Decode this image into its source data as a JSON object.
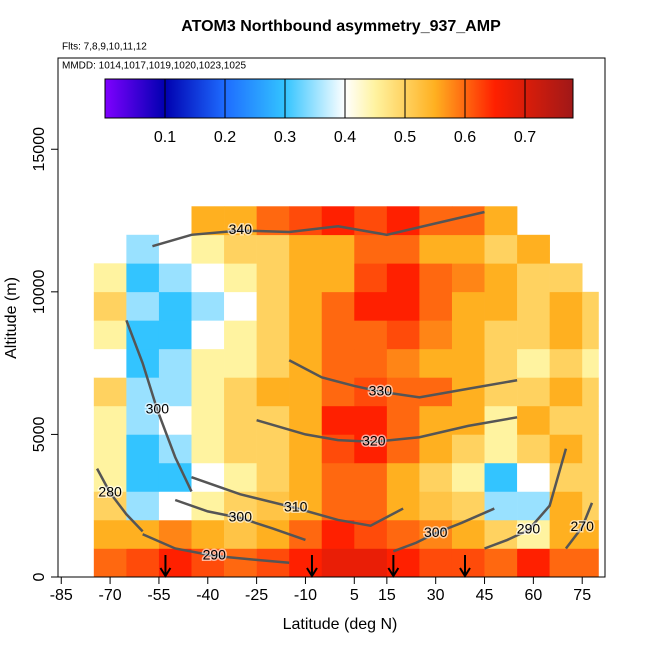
{
  "chart_data": {
    "type": "heatmap",
    "title": "ATOM3 Northbound asymmetry_937_AMP",
    "subtitle": "Flts: 7,8,9,10,11,12",
    "note": "MMDD: 1014,1017,1019,1020,1023,1025",
    "x_label": "Latitude (deg N)",
    "y_label": "Altitude (m)",
    "xlim": [
      -86,
      82
    ],
    "ylim": [
      0,
      18200
    ],
    "xticks": [
      -85,
      -70,
      -55,
      -40,
      -25,
      -10,
      5,
      15,
      30,
      45,
      60,
      75
    ],
    "yticks": [
      0,
      5000,
      10000,
      15000
    ],
    "lat_edges": [
      -75,
      -65,
      -55,
      -45,
      -35,
      -25,
      -15,
      -5,
      5,
      15,
      25,
      35,
      45,
      55,
      65,
      75,
      80
    ],
    "alt_edges": [
      0,
      1000,
      2000,
      3000,
      4000,
      5000,
      6000,
      7000,
      8000,
      9000,
      10000,
      11000,
      12000,
      13000
    ],
    "z": [
      [
        0.6,
        0.62,
        0.65,
        0.62,
        0.6,
        0.62,
        0.65,
        0.68,
        0.68,
        0.65,
        0.62,
        0.62,
        0.6,
        0.65,
        0.6,
        0.6
      ],
      [
        0.55,
        0.55,
        0.58,
        0.55,
        0.52,
        0.55,
        0.6,
        0.65,
        0.62,
        0.6,
        0.58,
        0.55,
        0.5,
        0.45,
        0.55,
        0.55
      ],
      [
        0.5,
        0.35,
        0.4,
        0.45,
        0.5,
        0.52,
        0.55,
        0.6,
        0.6,
        0.55,
        0.52,
        0.5,
        0.35,
        0.35,
        0.55,
        0.5
      ],
      [
        0.45,
        0.3,
        0.3,
        0.4,
        0.45,
        0.5,
        0.55,
        0.6,
        0.6,
        0.55,
        0.5,
        0.45,
        0.3,
        0.4,
        0.5,
        0.5
      ],
      [
        0.45,
        0.3,
        0.35,
        0.45,
        0.5,
        0.5,
        0.55,
        0.62,
        0.65,
        0.6,
        0.55,
        0.5,
        0.45,
        0.5,
        0.55,
        0.5
      ],
      [
        0.45,
        0.35,
        0.4,
        0.45,
        0.5,
        0.5,
        0.55,
        0.65,
        0.65,
        0.6,
        0.55,
        0.55,
        0.45,
        0.55,
        0.5,
        0.5
      ],
      [
        0.5,
        0.35,
        0.35,
        0.45,
        0.5,
        0.55,
        0.55,
        0.6,
        0.62,
        0.6,
        0.6,
        0.55,
        0.5,
        0.5,
        0.55,
        0.5
      ],
      [
        0.4,
        0.3,
        0.35,
        0.45,
        0.45,
        0.5,
        0.55,
        0.6,
        0.6,
        0.58,
        0.55,
        0.55,
        0.5,
        0.45,
        0.5,
        0.45
      ],
      [
        0.45,
        0.3,
        0.3,
        0.4,
        0.45,
        0.5,
        0.55,
        0.6,
        0.6,
        0.62,
        0.58,
        0.55,
        0.5,
        0.5,
        0.55,
        0.5
      ],
      [
        0.5,
        0.35,
        0.3,
        0.35,
        0.4,
        0.5,
        0.55,
        0.6,
        0.65,
        0.65,
        0.6,
        0.55,
        0.55,
        0.5,
        0.55,
        0.5
      ],
      [
        0.45,
        0.3,
        0.35,
        0.4,
        0.45,
        0.5,
        0.55,
        0.55,
        0.62,
        0.65,
        0.6,
        0.58,
        0.55,
        0.5,
        0.5,
        null
      ],
      [
        null,
        0.35,
        0.4,
        0.45,
        0.5,
        0.5,
        0.55,
        0.55,
        0.6,
        0.6,
        0.55,
        0.55,
        0.5,
        0.55,
        null,
        null
      ],
      [
        null,
        null,
        null,
        0.55,
        0.55,
        0.6,
        0.62,
        0.65,
        0.62,
        0.65,
        0.6,
        0.6,
        0.55,
        null,
        null,
        null
      ]
    ],
    "colorscale": [
      [
        0,
        "#7f00ff"
      ],
      [
        0.1,
        "#0000b0"
      ],
      [
        0.2,
        "#1e6cff"
      ],
      [
        0.3,
        "#33c4ff"
      ],
      [
        0.4,
        "#ffffff"
      ],
      [
        0.45,
        "#fff3a0"
      ],
      [
        0.55,
        "#ffb020"
      ],
      [
        0.65,
        "#ff2000"
      ],
      [
        0.78,
        "#a01818"
      ]
    ],
    "colorbar_lim": [
      0,
      0.78
    ],
    "colorbar_ticks": [
      0.1,
      0.2,
      0.3,
      0.4,
      0.5,
      0.6,
      0.7
    ],
    "contours": [
      {
        "level": 340,
        "label_lat": -30,
        "label_alt": 12150,
        "lat": [
          -57,
          -45,
          -30,
          -15,
          0,
          15,
          30,
          45
        ],
        "alt": [
          11600,
          12000,
          12150,
          12100,
          12300,
          12000,
          12400,
          12800
        ]
      },
      {
        "level": 330,
        "label_lat": 13,
        "label_alt": 6500,
        "lat": [
          -15,
          -5,
          5,
          13,
          25,
          40,
          55
        ],
        "alt": [
          7600,
          7000,
          6700,
          6500,
          6300,
          6600,
          6900
        ]
      },
      {
        "level": 320,
        "label_lat": 11,
        "label_alt": 4740,
        "lat": [
          -25,
          -10,
          0,
          11,
          25,
          40,
          55
        ],
        "alt": [
          5500,
          5000,
          4800,
          4740,
          4900,
          5300,
          5600
        ]
      },
      {
        "level": 310,
        "label_lat": -13,
        "label_alt": 2420,
        "lat": [
          -45,
          -30,
          -13,
          0,
          10,
          20
        ],
        "alt": [
          3500,
          2900,
          2420,
          2000,
          1800,
          2400
        ]
      },
      {
        "level": 300,
        "label_lat": -55.5,
        "label_alt": 5860,
        "lat": [
          -65,
          -60,
          -55.5,
          -50,
          -45
        ],
        "alt": [
          9000,
          7500,
          5860,
          4200,
          3000
        ]
      },
      {
        "level": 300,
        "label_lat": -30,
        "label_alt": 2070,
        "lat": [
          -50,
          -40,
          -30,
          -20,
          -10
        ],
        "alt": [
          2700,
          2300,
          2070,
          1700,
          1300
        ]
      },
      {
        "level": 300,
        "label_lat": 30,
        "label_alt": 1540,
        "lat": [
          17,
          24,
          30,
          38,
          48
        ],
        "alt": [
          900,
          1200,
          1540,
          1900,
          2400
        ]
      },
      {
        "level": 290,
        "label_lat": -38,
        "label_alt": 740,
        "lat": [
          -60,
          -50,
          -38,
          -25,
          -15
        ],
        "alt": [
          1500,
          1000,
          740,
          600,
          500
        ]
      },
      {
        "level": 290,
        "label_lat": 58.5,
        "label_alt": 1650,
        "lat": [
          45,
          52,
          58.5,
          65,
          70
        ],
        "alt": [
          1000,
          1300,
          1650,
          2500,
          4500
        ]
      },
      {
        "level": 280,
        "label_lat": -70,
        "label_alt": 2950,
        "lat": [
          -74,
          -70,
          -65,
          -60
        ],
        "alt": [
          3800,
          2950,
          2200,
          1600
        ]
      },
      {
        "level": 270,
        "label_lat": 75,
        "label_alt": 1750,
        "lat": [
          70,
          75,
          78
        ],
        "alt": [
          1000,
          1750,
          2600
        ]
      }
    ],
    "arrows_lat": [
      -53,
      -8,
      17,
      39
    ]
  }
}
